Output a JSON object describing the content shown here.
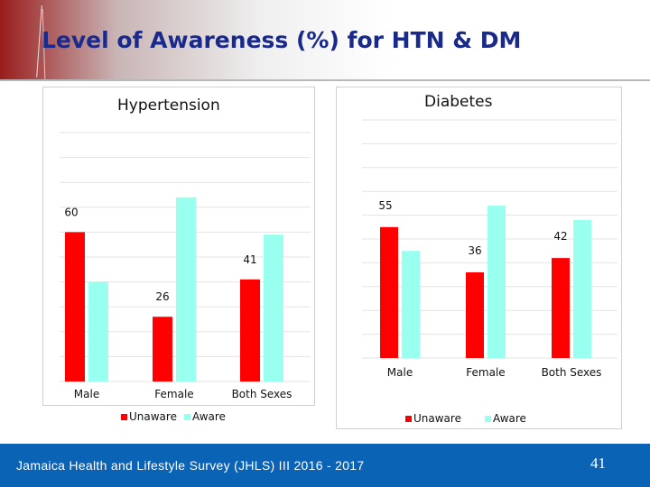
{
  "slide": {
    "title": "Level of Awareness (%) for HTN & DM",
    "footer_text": "Jamaica Health and Lifestyle Survey (JHLS) III 2016 - 2017",
    "page_number": "41"
  },
  "colors": {
    "unaware": "#ff0000",
    "aware": "#99ffee",
    "footer": "#0a63b4",
    "title": "#1a2a8a"
  },
  "chart_data": [
    {
      "type": "bar",
      "title": "Hypertension",
      "categories": [
        "Male",
        "Female",
        "Both Sexes"
      ],
      "series": [
        {
          "name": "Unaware",
          "values": [
            60,
            26,
            41
          ],
          "labels": [
            "60",
            "26",
            "41"
          ]
        },
        {
          "name": "Aware",
          "values": [
            40,
            74,
            59
          ],
          "labels": [
            "",
            "",
            ""
          ]
        }
      ],
      "ylim": [
        0,
        100
      ],
      "grid": true,
      "legend": [
        "Unaware",
        "Aware"
      ]
    },
    {
      "type": "bar",
      "title": "Diabetes",
      "categories": [
        "Male",
        "Female",
        "Both Sexes"
      ],
      "series": [
        {
          "name": "Unaware",
          "values": [
            55,
            36,
            42
          ],
          "labels": [
            "55",
            "36",
            "42"
          ]
        },
        {
          "name": "Aware",
          "values": [
            45,
            64,
            58
          ],
          "labels": [
            "",
            "",
            ""
          ]
        }
      ],
      "ylim": [
        0,
        100
      ],
      "grid": true,
      "legend": [
        "Unaware",
        "Aware"
      ]
    }
  ]
}
